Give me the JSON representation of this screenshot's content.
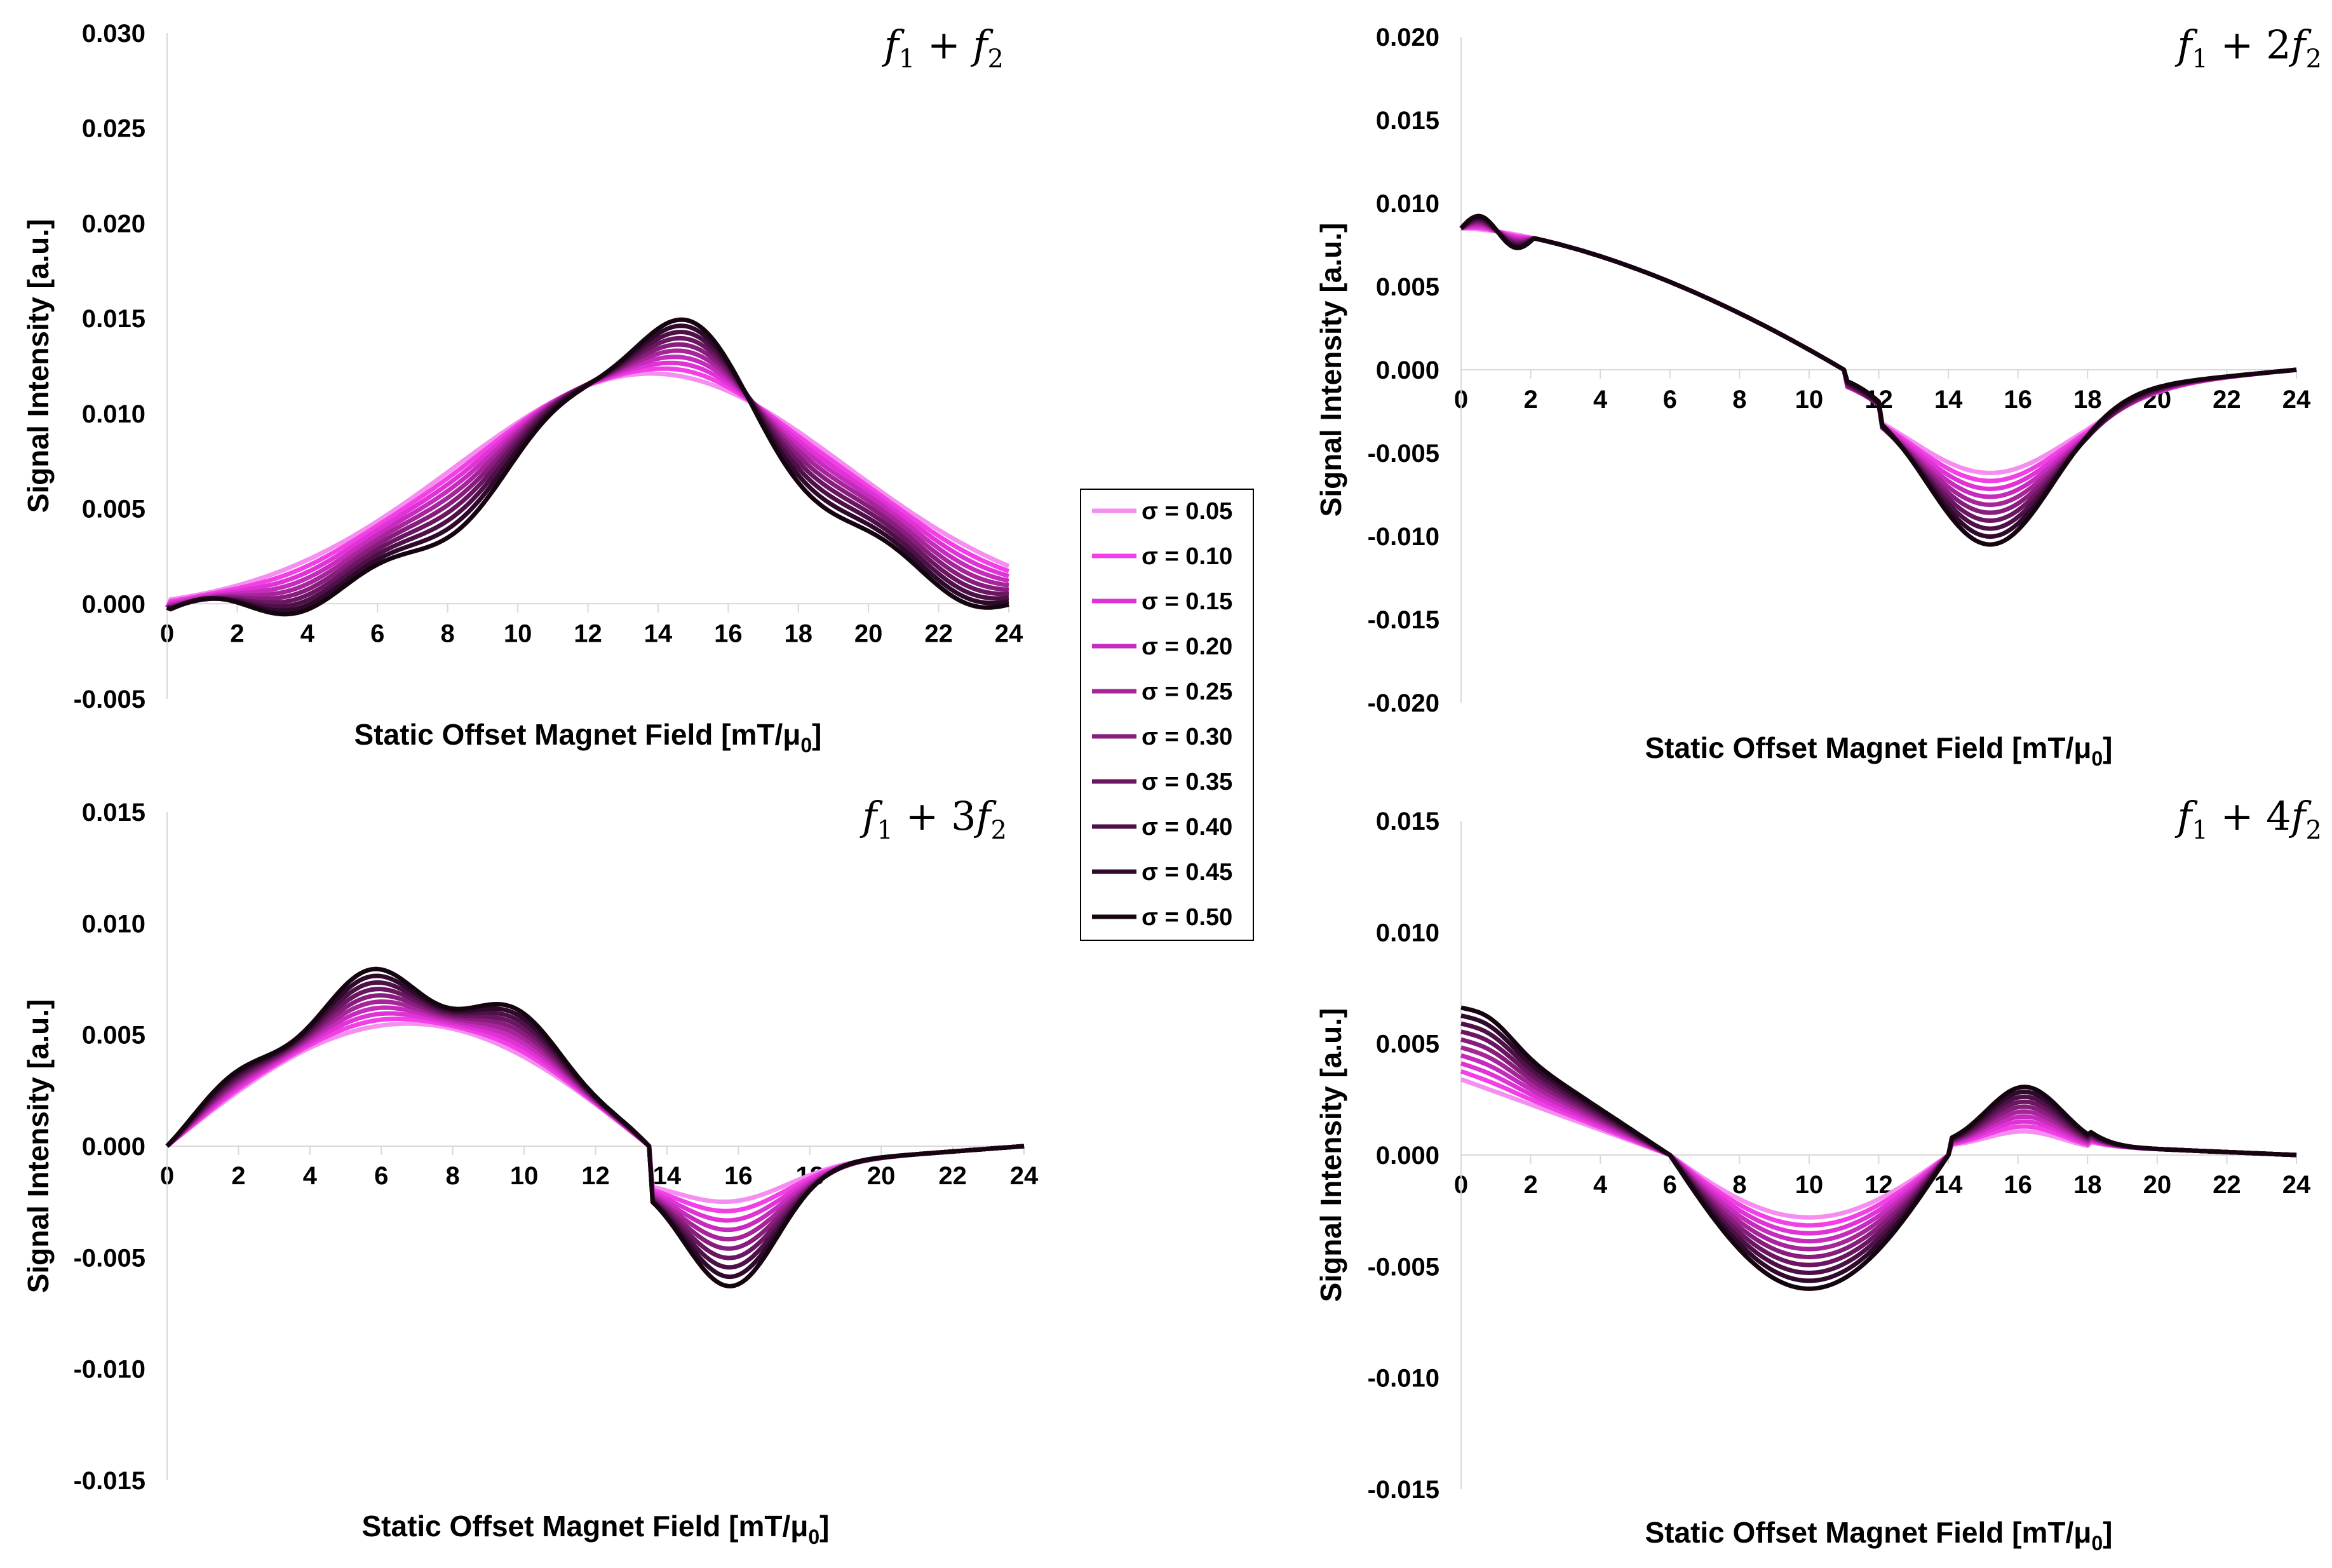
{
  "legend": {
    "entries": [
      "σ = 0.05",
      "σ = 0.10",
      "σ = 0.15",
      "σ = 0.20",
      "σ = 0.25",
      "σ = 0.30",
      "σ = 0.35",
      "σ = 0.40",
      "σ = 0.45",
      "σ = 0.50"
    ],
    "sigmas": [
      0.05,
      0.1,
      0.15,
      0.2,
      0.25,
      0.3,
      0.35,
      0.4,
      0.45,
      0.5
    ],
    "colors": [
      "#f58ef0",
      "#f23fe6",
      "#e033d6",
      "#c52bbd",
      "#a62599",
      "#871d7c",
      "#6a1661",
      "#4d1047",
      "#300a2c",
      "#150510"
    ]
  },
  "chart_data": [
    {
      "id": "p1",
      "type": "line",
      "title": {
        "main": "f",
        "parts": [
          [
            "f",
            "1"
          ],
          [
            " + ",
            ""
          ],
          [
            "f",
            "2"
          ]
        ],
        "text": "f1 + f2"
      },
      "xlabel": "Static Offset Magnet Field [mT/μ0]",
      "ylabel": "Signal Intensity [a.u.]",
      "xlim": [
        0,
        24
      ],
      "ylim": [
        -0.005,
        0.03
      ],
      "xticks": [
        "0",
        "2",
        "4",
        "6",
        "8",
        "10",
        "12",
        "14",
        "16",
        "18",
        "20",
        "22",
        "24"
      ],
      "yticks": [
        "0.030",
        "0.025",
        "0.020",
        "0.015",
        "0.010",
        "0.005",
        "0.000",
        "-0.005"
      ],
      "ytick_values": [
        0.03,
        0.025,
        0.02,
        0.015,
        0.01,
        0.005,
        0.0,
        -0.005
      ],
      "model": {
        "kind": "f1f2"
      },
      "x": [
        0,
        1,
        2,
        3,
        4,
        5,
        6,
        7,
        8,
        9,
        10,
        11,
        12,
        13,
        14,
        15,
        16,
        17,
        18,
        19,
        20,
        21,
        22,
        23,
        24
      ]
    },
    {
      "id": "p2",
      "type": "line",
      "title": {
        "text": "f1 + 2f2"
      },
      "xlabel": "Static Offset Magnet Field [mT/μ0]",
      "ylabel": "Signal Intensity [a.u.]",
      "xlim": [
        0,
        24
      ],
      "ylim": [
        -0.02,
        0.02
      ],
      "xticks": [
        "0",
        "2",
        "4",
        "6",
        "8",
        "10",
        "12",
        "14",
        "16",
        "18",
        "20",
        "22",
        "24"
      ],
      "yticks": [
        "0.020",
        "0.015",
        "0.010",
        "0.005",
        "0.000",
        "-0.005",
        "-0.010",
        "-0.015",
        "-0.020"
      ],
      "ytick_values": [
        0.02,
        0.015,
        0.01,
        0.005,
        0.0,
        -0.005,
        -0.01,
        -0.015,
        -0.02
      ],
      "model": {
        "kind": "f12f2"
      }
    },
    {
      "id": "p3",
      "type": "line",
      "title": {
        "text": "f1 + 3f2"
      },
      "xlabel": "Static Offset Magnet Field [mT/μ0]",
      "ylabel": "Signal Intensity [a.u.]",
      "xlim": [
        0,
        24
      ],
      "ylim": [
        -0.015,
        0.015
      ],
      "xticks": [
        "0",
        "2",
        "4",
        "6",
        "8",
        "10",
        "12",
        "14",
        "16",
        "18",
        "20",
        "22",
        "24"
      ],
      "yticks": [
        "0.015",
        "0.010",
        "0.005",
        "0.000",
        "-0.005",
        "-0.010",
        "-0.015"
      ],
      "ytick_values": [
        0.015,
        0.01,
        0.005,
        0.0,
        -0.005,
        -0.01,
        -0.015
      ],
      "model": {
        "kind": "f13f2"
      }
    },
    {
      "id": "p4",
      "type": "line",
      "title": {
        "text": "f1 + 4f2"
      },
      "xlabel": "Static Offset Magnet Field [mT/μ0]",
      "ylabel": "Signal Intensity [a.u.]",
      "xlim": [
        0,
        24
      ],
      "ylim": [
        -0.015,
        0.015
      ],
      "xticks": [
        "0",
        "2",
        "4",
        "6",
        "8",
        "10",
        "12",
        "14",
        "16",
        "18",
        "20",
        "22",
        "24"
      ],
      "yticks": [
        "0.015",
        "0.010",
        "0.005",
        "0.000",
        "-0.005",
        "-0.010",
        "-0.015"
      ],
      "ytick_values": [
        0.015,
        0.01,
        0.005,
        0.0,
        -0.005,
        -0.01,
        -0.015
      ],
      "model": {
        "kind": "f14f2"
      }
    }
  ]
}
